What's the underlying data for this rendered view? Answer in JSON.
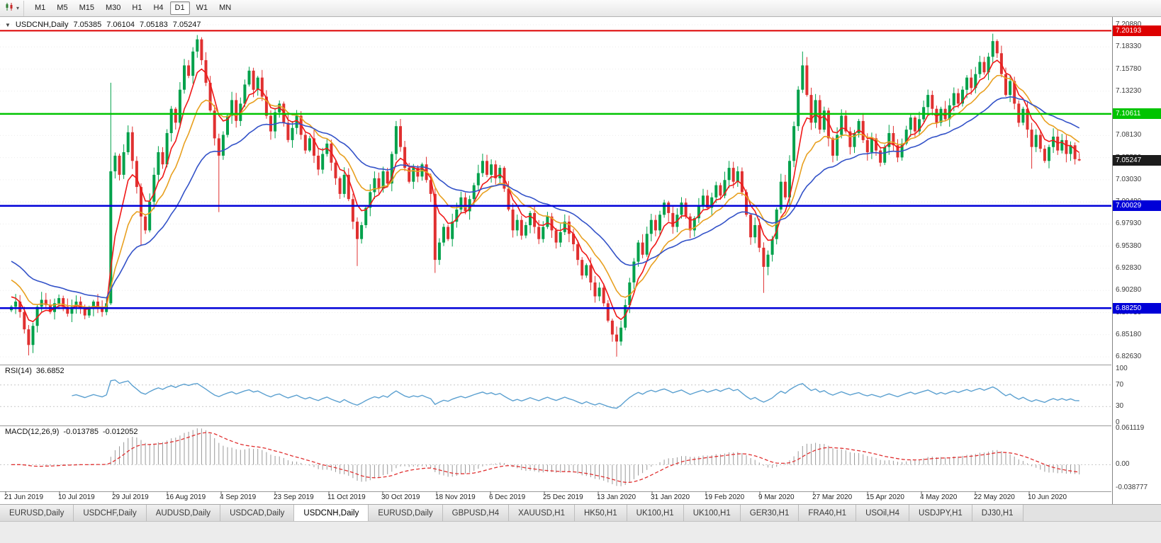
{
  "toolbar": {
    "caret": "▾",
    "timeframes": [
      {
        "label": "M1"
      },
      {
        "label": "M5"
      },
      {
        "label": "M15"
      },
      {
        "label": "M30"
      },
      {
        "label": "H1"
      },
      {
        "label": "H4"
      },
      {
        "label": "D1",
        "active": true
      },
      {
        "label": "W1"
      },
      {
        "label": "MN"
      }
    ]
  },
  "chart": {
    "menu_icon": "▼",
    "symbol": "USDCNH,Daily",
    "open": "7.05385",
    "high": "7.06104",
    "low": "7.05183",
    "close": "7.05247",
    "price_axis_ticks": [
      "7.20880",
      "7.18330",
      "7.15780",
      "7.13230",
      "7.10680",
      "7.08130",
      "7.05580",
      "7.03030",
      "7.00480",
      "6.97930",
      "6.95380",
      "6.92830",
      "6.90280",
      "6.87730",
      "6.85180",
      "6.82630"
    ],
    "hlines": [
      {
        "price": 7.20193,
        "label": "7.20193",
        "color": "#dd0000",
        "w": 2
      },
      {
        "price": 7.10611,
        "label": "7.10611",
        "color": "#00c400",
        "w": 2.5
      },
      {
        "price": 7.00029,
        "label": "7.00029",
        "color": "#0000d8",
        "w": 2.5
      },
      {
        "price": 6.8825,
        "label": "6.88250",
        "color": "#0000d8",
        "w": 2.5
      }
    ],
    "bid": {
      "price": 7.05247,
      "label": "7.05247",
      "color": "#1c1c1c"
    },
    "dates": [
      "21 Jun 2019",
      "10 Jul 2019",
      "29 Jul 2019",
      "16 Aug 2019",
      "4 Sep 2019",
      "23 Sep 2019",
      "11 Oct 2019",
      "30 Oct 2019",
      "18 Nov 2019",
      "6 Dec 2019",
      "25 Dec 2019",
      "13 Jan 2020",
      "31 Jan 2020",
      "19 Feb 2020",
      "9 Mar 2020",
      "27 Mar 2020",
      "15 Apr 2020",
      "4 May 2020",
      "22 May 2020",
      "10 Jun 2020"
    ]
  },
  "rsi": {
    "name": "RSI(14)",
    "value": "36.6852",
    "color": "#5ba0d0",
    "axis": [
      {
        "label": "100",
        "v": 100
      },
      {
        "label": "70",
        "v": 70
      },
      {
        "label": "30",
        "v": 30
      },
      {
        "label": "0",
        "v": 0
      }
    ],
    "levels": [
      70,
      30
    ]
  },
  "macd": {
    "name": "MACD(12,26,9)",
    "main": "-0.013785",
    "signal": "-0.012052",
    "bar_color": "#9a9a9a",
    "signal_color": "#e03030",
    "range": [
      -0.038777,
      0.061119
    ],
    "axis": [
      {
        "label": "0.061119",
        "v": 0.061119
      },
      {
        "label": "0.00",
        "v": 0
      },
      {
        "label": "-0.038777",
        "v": -0.038777
      }
    ]
  },
  "tabs": [
    {
      "label": "EURUSD,Daily"
    },
    {
      "label": "USDCHF,Daily"
    },
    {
      "label": "AUDUSD,Daily"
    },
    {
      "label": "USDCAD,Daily"
    },
    {
      "label": "USDCNH,Daily",
      "active": true
    },
    {
      "label": "EURUSD,Daily"
    },
    {
      "label": "GBPUSD,H4"
    },
    {
      "label": "XAUUSD,H1"
    },
    {
      "label": "HK50,H1"
    },
    {
      "label": "UK100,H1"
    },
    {
      "label": "UK100,H1"
    },
    {
      "label": "GER30,H1"
    },
    {
      "label": "FRA40,H1"
    },
    {
      "label": "USOil,H4"
    },
    {
      "label": "USDJPY,H1"
    },
    {
      "label": "DJ30,H1"
    }
  ],
  "chart_data": {
    "type": "candlestick",
    "symbol": "USDCNH",
    "timeframe": "Daily",
    "title": "USDCNH,Daily",
    "ylim": [
      6.82555,
      7.2088
    ],
    "last_ohlc": [
      7.05385,
      7.06104,
      7.05183,
      7.05247
    ],
    "first_open": 6.88,
    "closes": [
      6.884,
      6.89,
      6.878,
      6.858,
      6.84,
      6.862,
      6.884,
      6.892,
      6.886,
      6.878,
      6.888,
      6.894,
      6.884,
      6.876,
      6.884,
      6.89,
      6.882,
      6.874,
      6.882,
      6.89,
      6.884,
      6.878,
      6.888,
      7.04,
      7.058,
      7.036,
      7.062,
      7.085,
      7.052,
      7.022,
      6.988,
      6.972,
      7.005,
      7.036,
      7.062,
      7.048,
      7.084,
      7.112,
      7.096,
      7.134,
      7.162,
      7.15,
      7.178,
      7.192,
      7.168,
      7.142,
      7.11,
      7.078,
      7.058,
      7.082,
      7.104,
      7.122,
      7.098,
      7.118,
      7.14,
      7.156,
      7.134,
      7.148,
      7.126,
      7.104,
      7.086,
      7.108,
      7.118,
      7.096,
      7.076,
      7.09,
      7.104,
      7.082,
      7.064,
      7.078,
      7.058,
      7.042,
      7.06,
      7.072,
      7.05,
      7.032,
      7.014,
      7.036,
      7.008,
      6.982,
      6.962,
      6.978,
      6.998,
      7.016,
      7.032,
      7.02,
      7.04,
      7.026,
      7.06,
      7.092,
      7.068,
      7.044,
      7.028,
      7.044,
      7.034,
      7.048,
      7.03,
      7.014,
      6.938,
      6.958,
      6.976,
      6.962,
      6.982,
      6.996,
      7.01,
      6.994,
      7.008,
      7.024,
      7.038,
      7.052,
      7.036,
      7.048,
      7.032,
      7.044,
      7.02,
      6.996,
      6.972,
      6.984,
      6.966,
      6.978,
      6.992,
      6.976,
      6.962,
      6.976,
      6.988,
      6.972,
      6.958,
      6.97,
      6.982,
      6.968,
      6.956,
      6.938,
      6.92,
      6.932,
      6.912,
      6.896,
      6.906,
      6.888,
      6.868,
      6.852,
      6.844,
      6.86,
      6.886,
      6.912,
      6.936,
      6.958,
      6.944,
      6.968,
      6.984,
      6.972,
      6.99,
      7.004,
      6.992,
      6.976,
      6.99,
      7.004,
      6.988,
      6.972,
      6.986,
      7.0,
      7.012,
      6.998,
      7.01,
      7.024,
      7.012,
      7.03,
      7.044,
      7.028,
      7.04,
      7.016,
      6.99,
      6.964,
      6.978,
      6.952,
      6.93,
      6.944,
      6.962,
      6.996,
      7.028,
      7.01,
      7.052,
      7.092,
      7.134,
      7.162,
      7.128,
      7.096,
      7.122,
      7.088,
      7.11,
      7.078,
      7.058,
      7.082,
      7.104,
      7.086,
      7.068,
      7.084,
      7.098,
      7.076,
      7.062,
      7.078,
      7.064,
      7.05,
      7.068,
      7.084,
      7.07,
      7.056,
      7.072,
      7.088,
      7.102,
      7.086,
      7.1,
      7.114,
      7.128,
      7.112,
      7.096,
      7.112,
      7.1,
      7.116,
      7.13,
      7.118,
      7.134,
      7.148,
      7.136,
      7.152,
      7.166,
      7.154,
      7.172,
      7.19,
      7.176,
      7.152,
      7.128,
      7.144,
      7.118,
      7.096,
      7.112,
      7.088,
      7.068,
      7.082,
      7.066,
      7.052,
      7.068,
      7.08,
      7.064,
      7.076,
      7.06,
      7.07,
      7.054,
      7.0525
    ],
    "wick_overrides": {
      "4": [
        null,
        6.828
      ],
      "23": [
        7.142,
        null
      ],
      "30": [
        null,
        6.954
      ],
      "43": [
        7.197,
        null
      ],
      "48": [
        null,
        6.993
      ],
      "80": [
        null,
        6.931
      ],
      "89": [
        7.098,
        null
      ],
      "98": [
        null,
        6.923
      ],
      "140": [
        null,
        6.8265
      ],
      "166": [
        7.052,
        null
      ],
      "174": [
        null,
        6.9
      ],
      "183": [
        7.178,
        null
      ],
      "227": [
        7.1985,
        null
      ],
      "236": [
        null,
        7.043
      ],
      "247": [
        7.061,
        7.0518
      ]
    },
    "up_color": "#00a14b",
    "down_color": "#e03030",
    "mas": [
      {
        "type": "ema",
        "period": 6,
        "color": "#f01818",
        "seed": 6.9
      },
      {
        "type": "ema",
        "period": 13,
        "color": "#e8a020",
        "seed": 6.92
      },
      {
        "type": "ema",
        "period": 30,
        "color": "#3352c8",
        "seed": 6.94
      }
    ],
    "indicators": {
      "rsi_period": 14,
      "macd": [
        12,
        26,
        9
      ]
    }
  }
}
